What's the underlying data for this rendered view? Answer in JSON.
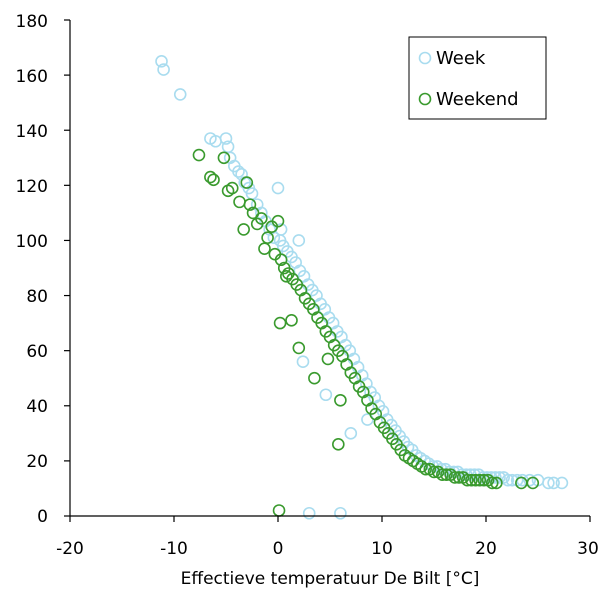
{
  "chart_data": {
    "type": "scatter",
    "title": "",
    "xlabel": "Effectieve temperatuur De Bilt [°C]",
    "ylabel": "",
    "xlim": [
      -20,
      30
    ],
    "ylim": [
      0,
      180
    ],
    "x_ticks": [
      "-20",
      "-10",
      "0",
      "10",
      "20",
      "30"
    ],
    "y_ticks": [
      "0",
      "20",
      "40",
      "60",
      "80",
      "100",
      "120",
      "140",
      "160",
      "180"
    ],
    "grid": false,
    "legend": {
      "position": "top-right",
      "entries": [
        "Week",
        "Weekend"
      ]
    },
    "colors": {
      "Week": "#a9dcef",
      "Weekend": "#3a9a2e"
    },
    "series": [
      {
        "name": "Week",
        "x": [
          -11.2,
          -11.0,
          -9.4,
          -6.5,
          -6.0,
          -5.0,
          -4.8,
          -4.6,
          -4.2,
          -3.8,
          -3.5,
          -3.2,
          -2.8,
          -2.5,
          -2.0,
          -1.6,
          -1.2,
          -0.8,
          -0.4,
          0.0,
          0.2,
          0.5,
          0.9,
          1.3,
          1.7,
          2.1,
          2.5,
          2.9,
          3.3,
          3.7,
          4.1,
          4.5,
          4.9,
          5.3,
          5.7,
          6.1,
          6.5,
          6.9,
          7.3,
          7.7,
          8.1,
          8.5,
          8.9,
          9.3,
          9.7,
          10.1,
          10.5,
          10.9,
          11.3,
          11.7,
          12.1,
          12.5,
          12.9,
          13.3,
          13.7,
          14.1,
          14.5,
          14.9,
          15.3,
          15.7,
          16.1,
          16.5,
          16.9,
          17.3,
          17.7,
          18.1,
          18.5,
          18.9,
          19.3,
          19.7,
          20.1,
          20.5,
          20.9,
          21.3,
          21.7,
          22.1,
          22.5,
          23.0,
          23.5,
          24.2,
          25.0,
          26.0,
          26.5,
          27.3,
          3.0,
          6.0,
          0.3,
          2.0,
          2.4,
          4.6,
          7.0,
          8.6
        ],
        "y": [
          165,
          162,
          153,
          137,
          136,
          137,
          134,
          130,
          127,
          125,
          124,
          121,
          119,
          117,
          113,
          110,
          107,
          104,
          101,
          119,
          100,
          98,
          96,
          94,
          92,
          89,
          87,
          84,
          82,
          80,
          77,
          75,
          72,
          70,
          67,
          65,
          62,
          60,
          57,
          54,
          51,
          48,
          45,
          43,
          40,
          38,
          35,
          33,
          31,
          29,
          27,
          25,
          24,
          22,
          21,
          20,
          19,
          18,
          18,
          17,
          17,
          16,
          16,
          16,
          15,
          15,
          15,
          15,
          15,
          14,
          14,
          14,
          14,
          14,
          14,
          13,
          13,
          13,
          13,
          13,
          13,
          12,
          12,
          12,
          1,
          1,
          104,
          100,
          56,
          44,
          30,
          35
        ]
      },
      {
        "name": "Weekend",
        "x": [
          -7.6,
          -6.5,
          -6.2,
          -5.2,
          -4.8,
          -4.4,
          -3.7,
          -3.3,
          -3.0,
          -2.7,
          -2.4,
          -2.0,
          -1.6,
          -1.3,
          -1.0,
          -0.6,
          -0.3,
          0.0,
          0.3,
          0.6,
          1.0,
          1.4,
          1.8,
          2.2,
          2.6,
          3.0,
          3.4,
          3.8,
          4.2,
          4.6,
          5.0,
          5.4,
          5.8,
          6.2,
          6.6,
          7.0,
          7.4,
          7.8,
          8.2,
          8.6,
          9.0,
          9.4,
          9.8,
          10.2,
          10.6,
          11.0,
          11.4,
          11.8,
          12.2,
          12.6,
          13.0,
          13.4,
          13.8,
          14.2,
          14.6,
          15.0,
          15.4,
          15.8,
          16.2,
          16.6,
          17.0,
          17.4,
          17.8,
          18.2,
          18.6,
          19.0,
          19.4,
          19.8,
          20.2,
          20.6,
          21.0,
          23.4,
          24.5,
          0.1,
          5.8,
          1.3,
          0.2,
          2.0,
          0.8,
          3.5,
          6.0,
          4.8
        ],
        "y": [
          131,
          123,
          122,
          130,
          118,
          119,
          114,
          104,
          121,
          113,
          110,
          106,
          108,
          97,
          101,
          105,
          95,
          107,
          93,
          90,
          88,
          86,
          84,
          82,
          79,
          77,
          75,
          72,
          70,
          67,
          65,
          62,
          60,
          58,
          55,
          52,
          50,
          47,
          45,
          42,
          39,
          37,
          34,
          32,
          30,
          28,
          26,
          24,
          22,
          21,
          20,
          19,
          18,
          17,
          17,
          16,
          16,
          15,
          15,
          15,
          14,
          14,
          14,
          13,
          13,
          13,
          13,
          13,
          13,
          12,
          12,
          12,
          12,
          2,
          26,
          71,
          70,
          61,
          87,
          50,
          42,
          57
        ]
      }
    ]
  }
}
